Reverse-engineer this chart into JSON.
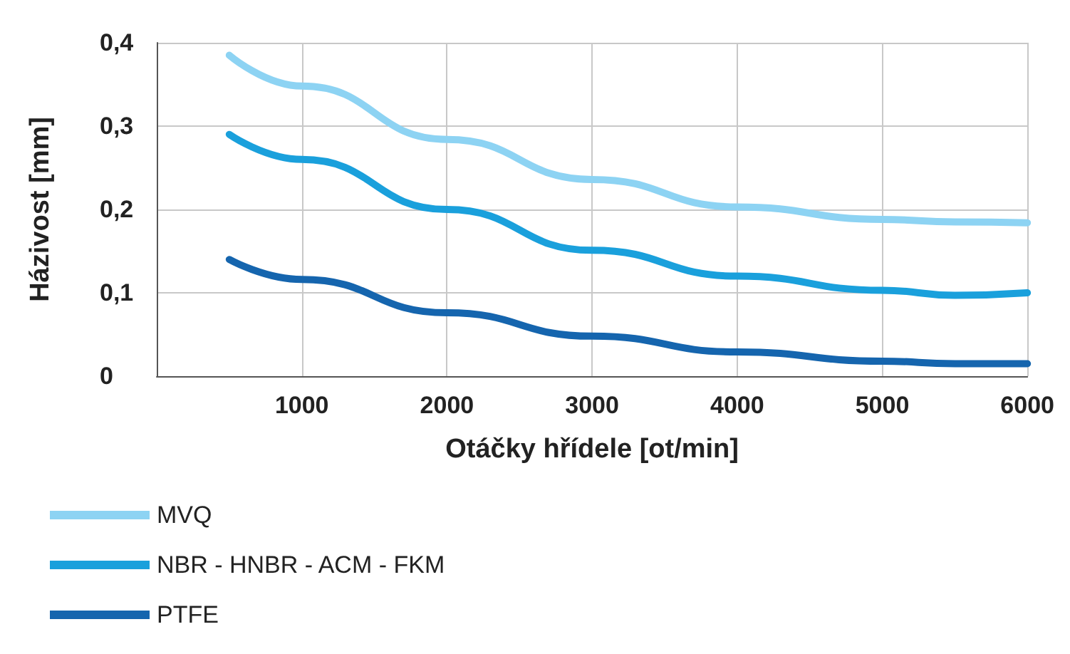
{
  "chart_data": {
    "type": "line",
    "xlabel": "Otáčky hřídele [ot/min]",
    "ylabel": "Házivost [mm]",
    "x": [
      500,
      1000,
      2000,
      3000,
      4000,
      5000,
      5500,
      6000
    ],
    "series": [
      {
        "name": "MVQ",
        "color": "#8dd3f3",
        "values": [
          0.385,
          0.348,
          0.284,
          0.236,
          0.203,
          0.188,
          0.185,
          0.184
        ]
      },
      {
        "name": "NBR - HNBR - ACM - FKM",
        "color": "#1aa0dc",
        "values": [
          0.29,
          0.26,
          0.2,
          0.151,
          0.12,
          0.103,
          0.097,
          0.1
        ]
      },
      {
        "name": "PTFE",
        "color": "#1565ae",
        "values": [
          0.14,
          0.116,
          0.076,
          0.048,
          0.029,
          0.018,
          0.015,
          0.015
        ]
      }
    ],
    "xlim": [
      0,
      6000
    ],
    "xticks": [
      1000,
      2000,
      3000,
      4000,
      5000,
      6000
    ],
    "ylim": [
      0,
      0.4
    ],
    "yticks": [
      {
        "value": 0,
        "label": "0"
      },
      {
        "value": 0.1,
        "label": "0,1"
      },
      {
        "value": 0.2,
        "label": "0,2"
      },
      {
        "value": 0.3,
        "label": "0,3"
      },
      {
        "value": 0.4,
        "label": "0,4"
      }
    ],
    "grid": true,
    "legend": "bottom left",
    "marker": "none",
    "line_style": "solid"
  }
}
